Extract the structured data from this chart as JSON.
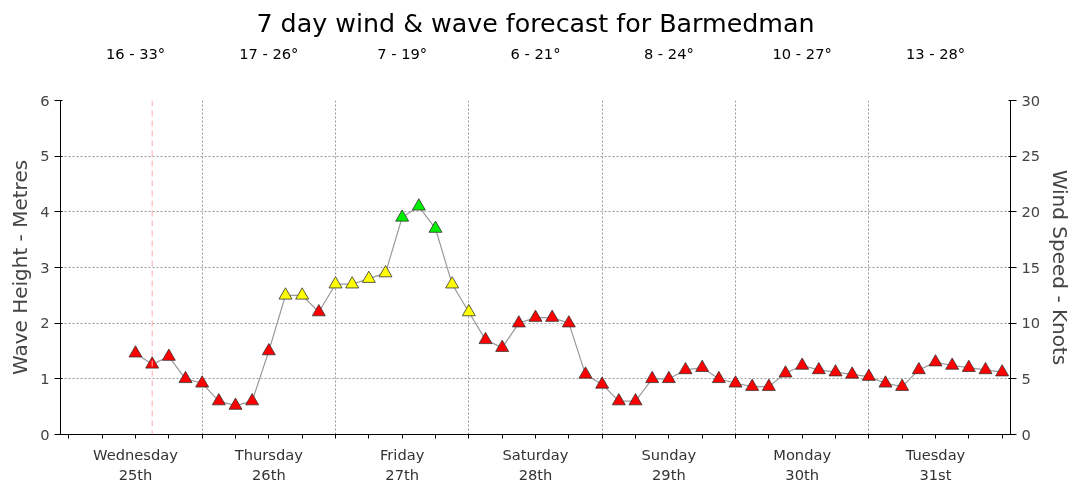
{
  "chart_data": {
    "type": "line",
    "title": "7 day wind & wave forecast for Barmedman",
    "annotations": [
      "16 - 33°",
      "17 - 26°",
      "7 - 19°",
      "6 - 21°",
      "8 - 24°",
      "10 - 27°",
      "13 - 28°"
    ],
    "ylabel": "Wave Height - Metres",
    "y2label": "Wind Speed - Knots",
    "categories": [
      null,
      null,
      null,
      null,
      "Wednesday\n25th",
      null,
      null,
      null,
      null,
      null,
      null,
      null,
      "Thursday\n26th",
      null,
      null,
      null,
      null,
      null,
      null,
      null,
      "Friday\n27th",
      null,
      null,
      null,
      null,
      null,
      null,
      null,
      "Saturday\n28th",
      null,
      null,
      null,
      null,
      null,
      null,
      null,
      "Sunday\n29th",
      null,
      null,
      null,
      null,
      null,
      null,
      null,
      "Monday\n30th",
      null,
      null,
      null,
      null,
      null,
      null,
      null,
      "Tuesday\n31st",
      null,
      null,
      null,
      null
    ],
    "ylim": [
      0,
      6
    ],
    "yticks": [
      0,
      1,
      2,
      3,
      4,
      5,
      6
    ],
    "y2lim": [
      0,
      30
    ],
    "y2ticks": [
      0,
      5,
      10,
      15,
      20,
      25,
      30
    ],
    "grid": true,
    "marker": "triangle",
    "line_style": "solid",
    "series": [
      {
        "axis": "y2",
        "color": "#999999",
        "values": [
          null,
          null,
          null,
          null,
          7.3,
          6.3,
          7.0,
          5.0,
          4.6,
          3.0,
          2.6,
          3.0,
          7.5,
          12.5,
          12.5,
          11.0,
          13.5,
          13.5,
          14.0,
          14.5,
          19.5,
          20.5,
          18.5,
          13.5,
          11.0,
          8.5,
          7.8,
          10.0,
          10.5,
          10.5,
          10.0,
          5.4,
          4.5,
          3.0,
          3.0,
          5.0,
          5.0,
          5.8,
          6.0,
          5.0,
          4.6,
          4.3,
          4.3,
          5.5,
          6.2,
          5.8,
          5.6,
          5.4,
          5.2,
          4.6,
          4.3,
          5.8,
          6.5,
          6.2,
          6.0,
          5.8,
          5.6
        ],
        "colors": [
          "#ff0000",
          "#ff0000",
          "#ff0000",
          "#ff0000",
          "#ff0000",
          "#ff0000",
          "#ff0000",
          "#ff0000",
          "#ff0000",
          "#ff0000",
          "#ff0000",
          "#ff0000",
          "#ff0000",
          "#ffff00",
          "#ffff00",
          "#ff0000",
          "#ffff00",
          "#ffff00",
          "#ffff00",
          "#ffff00",
          "#00ee00",
          "#00ee00",
          "#00ee00",
          "#ffff00",
          "#ffff00",
          "#ff0000",
          "#ff0000",
          "#ff0000",
          "#ff0000",
          "#ff0000",
          "#ff0000",
          "#ff0000",
          "#ff0000",
          "#ff0000",
          "#ff0000",
          "#ff0000",
          "#ff0000",
          "#ff0000",
          "#ff0000",
          "#ff0000",
          "#ff0000",
          "#ff0000",
          "#ff0000",
          "#ff0000",
          "#ff0000",
          "#ff0000",
          "#ff0000",
          "#ff0000",
          "#ff0000",
          "#ff0000",
          "#ff0000",
          "#ff0000",
          "#ff0000",
          "#ff0000",
          "#ff0000",
          "#ff0000",
          "#ff0000"
        ]
      }
    ]
  }
}
